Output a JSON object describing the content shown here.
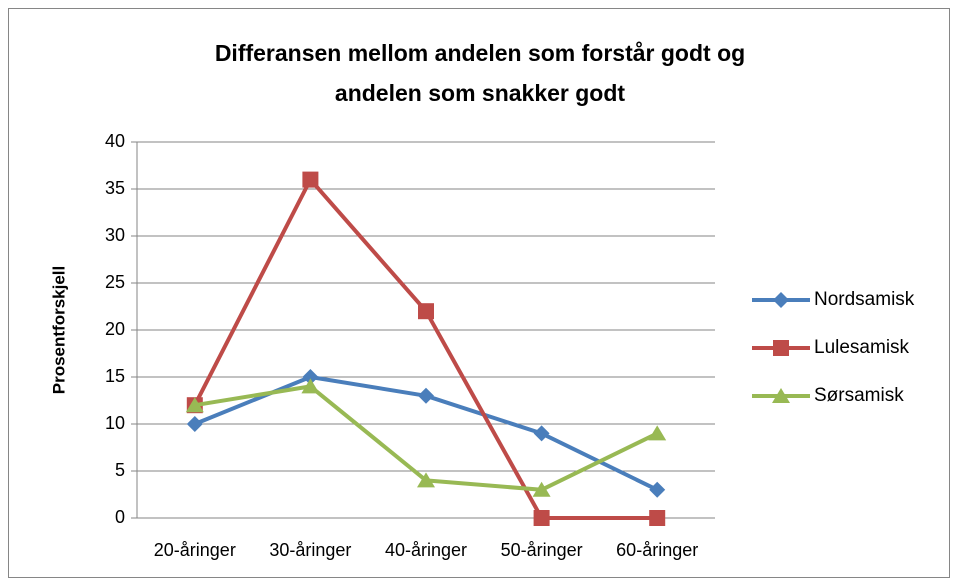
{
  "chart_data": {
    "type": "line",
    "title": [
      "Differansen mellom andelen som forstår godt og",
      "andelen som snakker godt"
    ],
    "y_label": "Prosentforskjell",
    "categories": [
      "20-åringer",
      "30-åringer",
      "40-åringer",
      "50-åringer",
      "60-åringer"
    ],
    "series": [
      {
        "name": "Nordsamisk",
        "color": "#4a7ebb",
        "marker": "diamond",
        "values": [
          10,
          15,
          13,
          9,
          3
        ]
      },
      {
        "name": "Lulesamisk",
        "color": "#be4b48",
        "marker": "square",
        "values": [
          12,
          36,
          22,
          0,
          0
        ]
      },
      {
        "name": "Sørsamisk",
        "color": "#98b954",
        "marker": "triangle",
        "values": [
          12,
          14,
          4,
          3,
          9
        ]
      }
    ],
    "ylim": [
      0,
      40
    ],
    "yticks": [
      0,
      5,
      10,
      15,
      20,
      25,
      30,
      35,
      40
    ],
    "grid": true,
    "legend": "right"
  }
}
